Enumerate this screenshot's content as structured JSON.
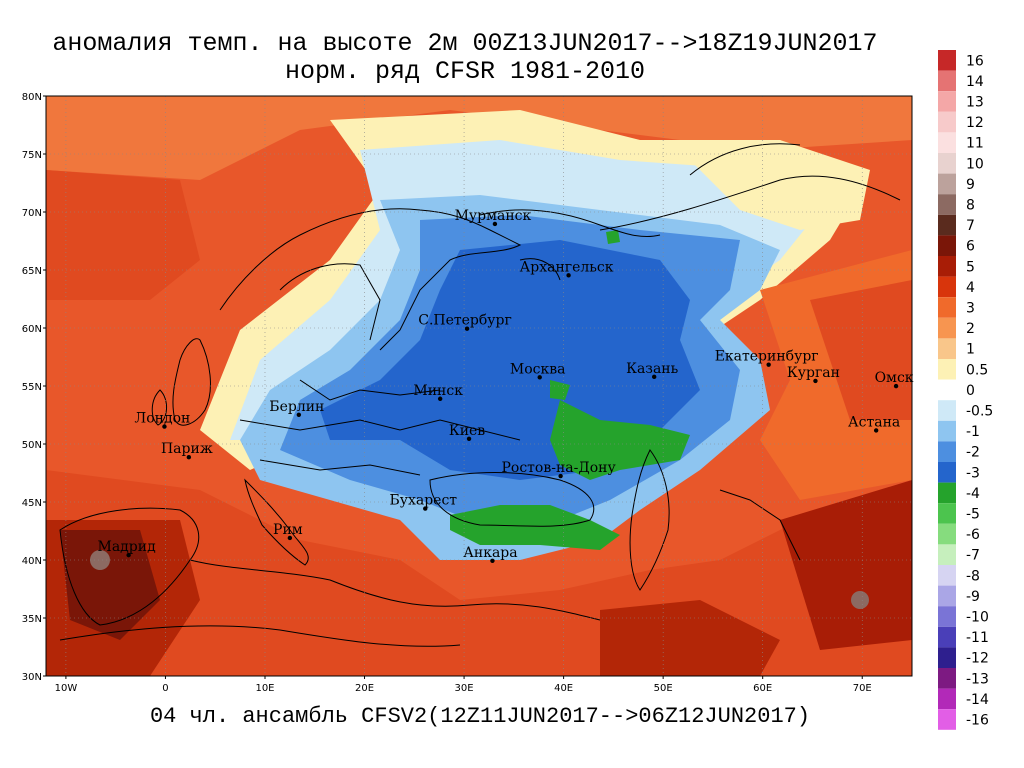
{
  "title": {
    "line1": "аномалия темп. на высоте 2м 00Z13JUN2017-->18Z19JUN2017",
    "line2": "норм. ряд CFSR 1981-2010"
  },
  "footer": "04 чл. ансамбль CFSV2(12Z11JUN2017-->06Z12JUN2017)",
  "axes": {
    "lat_labels": [
      "80N",
      "75N",
      "70N",
      "65N",
      "60N",
      "55N",
      "50N",
      "45N",
      "40N",
      "35N",
      "30N"
    ],
    "lon_labels": [
      "10W",
      "0",
      "10E",
      "20E",
      "30E",
      "40E",
      "50E",
      "60E",
      "70E"
    ]
  },
  "cities": [
    {
      "name": "Мурманск",
      "lon": 33.1,
      "lat": 68.97
    },
    {
      "name": "Архангельск",
      "lon": 40.5,
      "lat": 64.54
    },
    {
      "name": "С.Петербург",
      "lon": 30.3,
      "lat": 59.94
    },
    {
      "name": "Москва",
      "lon": 37.6,
      "lat": 55.75
    },
    {
      "name": "Казань",
      "lon": 49.1,
      "lat": 55.79
    },
    {
      "name": "Екатеринбург",
      "lon": 60.6,
      "lat": 56.84
    },
    {
      "name": "Курган",
      "lon": 65.3,
      "lat": 55.44
    },
    {
      "name": "Омск",
      "lon": 73.4,
      "lat": 54.99
    },
    {
      "name": "Астана",
      "lon": 71.4,
      "lat": 51.17
    },
    {
      "name": "Минск",
      "lon": 27.6,
      "lat": 53.9
    },
    {
      "name": "Берлин",
      "lon": 13.4,
      "lat": 52.52
    },
    {
      "name": "Лондон",
      "lon": -0.1,
      "lat": 51.5
    },
    {
      "name": "Париж",
      "lon": 2.35,
      "lat": 48.86
    },
    {
      "name": "Киев",
      "lon": 30.5,
      "lat": 50.45
    },
    {
      "name": "Ростов-на-Дону",
      "lon": 39.7,
      "lat": 47.24
    },
    {
      "name": "Бухарест",
      "lon": 26.1,
      "lat": 44.43
    },
    {
      "name": "Рим",
      "lon": 12.5,
      "lat": 41.9
    },
    {
      "name": "Мадрид",
      "lon": -3.7,
      "lat": 40.42
    },
    {
      "name": "Анкара",
      "lon": 32.85,
      "lat": 39.93
    }
  ],
  "colorbar": {
    "labels": [
      "16",
      "14",
      "13",
      "12",
      "11",
      "10",
      "9",
      "8",
      "7",
      "6",
      "5",
      "4",
      "3",
      "2",
      "1",
      "0.5",
      "0",
      "-0.5",
      "-1",
      "-2",
      "-3",
      "-4",
      "-5",
      "-6",
      "-7",
      "-8",
      "-9",
      "-10",
      "-11",
      "-12",
      "-13",
      "-14",
      "-16"
    ],
    "colors": [
      "#c62828",
      "#e57373",
      "#f4a7a7",
      "#f7caca",
      "#fbe0e0",
      "#e8d2cf",
      "#bca29c",
      "#8c6a62",
      "#5a2b1e",
      "#7a1608",
      "#a81d06",
      "#d8350c",
      "#f06a2b",
      "#f79550",
      "#f9c68a",
      "#fdf1b5",
      "#ffffff",
      "#cfe9f7",
      "#8ec5f0",
      "#4d8fe0",
      "#2465cc",
      "#25a32c",
      "#4cc44e",
      "#86dc7e",
      "#c6efbd",
      "#d6d4f2",
      "#aaa6e6",
      "#7a74d6",
      "#4a3fb8",
      "#2e1f8e",
      "#7d1a82",
      "#b229b8",
      "#e25ee6",
      "#f59cf0"
    ]
  }
}
